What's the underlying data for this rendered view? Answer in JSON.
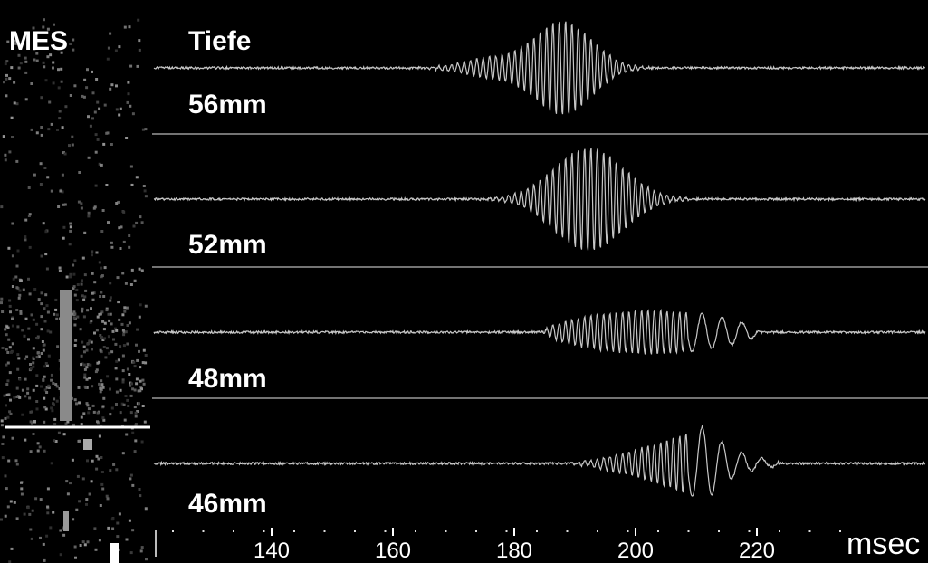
{
  "panel": {
    "label": "MES"
  },
  "traces": {
    "title": "Tiefe",
    "labels": [
      "56mm",
      "52mm",
      "48mm",
      "46mm"
    ]
  },
  "axis": {
    "ticks": [
      140,
      160,
      180,
      200,
      220
    ],
    "unit": "msec"
  }
}
